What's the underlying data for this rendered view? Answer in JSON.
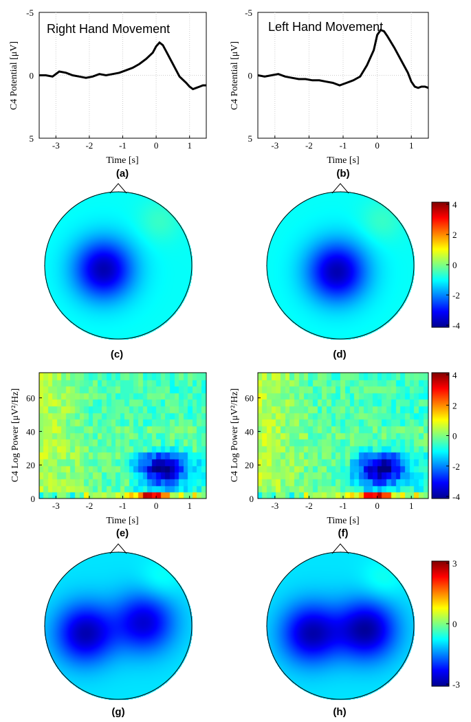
{
  "chart_data": [
    {
      "id": "a",
      "type": "line",
      "panel_label": "(a)",
      "annotation": "Right Hand Movement",
      "xlabel": "Time [s]",
      "ylabel": "C4 Potential [μV]",
      "xlim": [
        -3.5,
        1.5
      ],
      "ylim": [
        5,
        -5
      ],
      "xticks": [
        -3,
        -2,
        -1,
        0,
        1
      ],
      "yticks": [
        -5,
        0,
        5
      ],
      "grid": true,
      "series": [
        {
          "x": [
            -3.5,
            -3.3,
            -3.1,
            -2.9,
            -2.7,
            -2.5,
            -2.3,
            -2.1,
            -1.9,
            -1.7,
            -1.5,
            -1.3,
            -1.1,
            -0.9,
            -0.7,
            -0.5,
            -0.3,
            -0.1,
            0.0,
            0.1,
            0.2,
            0.3,
            0.5,
            0.7,
            0.9,
            1.0,
            1.1,
            1.2,
            1.3,
            1.4,
            1.5
          ],
          "y": [
            0,
            0,
            0.1,
            -0.3,
            -0.2,
            0,
            0.1,
            0.2,
            0.1,
            -0.1,
            0,
            -0.1,
            -0.2,
            -0.4,
            -0.6,
            -0.9,
            -1.3,
            -1.8,
            -2.3,
            -2.6,
            -2.4,
            -1.9,
            -0.9,
            0.1,
            0.6,
            0.9,
            1.1,
            1.0,
            0.9,
            0.8,
            0.8
          ]
        }
      ]
    },
    {
      "id": "b",
      "type": "line",
      "panel_label": "(b)",
      "annotation": "Left Hand Movement",
      "xlabel": "Time [s]",
      "ylabel": "C4 Potential [μV]",
      "xlim": [
        -3.5,
        1.5
      ],
      "ylim": [
        5,
        -5
      ],
      "xticks": [
        -3,
        -2,
        -1,
        0,
        1
      ],
      "yticks": [
        -5,
        0,
        5
      ],
      "grid": true,
      "series": [
        {
          "x": [
            -3.5,
            -3.3,
            -3.1,
            -2.9,
            -2.7,
            -2.5,
            -2.3,
            -2.1,
            -1.9,
            -1.7,
            -1.5,
            -1.3,
            -1.1,
            -0.9,
            -0.7,
            -0.5,
            -0.3,
            -0.1,
            0.0,
            0.1,
            0.2,
            0.3,
            0.5,
            0.7,
            0.9,
            1.0,
            1.1,
            1.2,
            1.3,
            1.4,
            1.5
          ],
          "y": [
            0,
            0.1,
            0,
            -0.1,
            0.1,
            0.2,
            0.3,
            0.3,
            0.4,
            0.4,
            0.5,
            0.6,
            0.8,
            0.6,
            0.4,
            0.1,
            -0.8,
            -2.0,
            -3.2,
            -3.6,
            -3.5,
            -3.1,
            -2.2,
            -1.2,
            -0.2,
            0.5,
            0.9,
            1.0,
            0.9,
            0.9,
            1.0
          ]
        }
      ]
    },
    {
      "id": "c",
      "type": "heatmap",
      "panel_label": "(c)",
      "description": "scalp topography",
      "minima": [
        {
          "x": -0.2,
          "y": 0.05,
          "strength": 1.0
        }
      ],
      "clim": [
        -4,
        4
      ]
    },
    {
      "id": "d",
      "type": "heatmap",
      "panel_label": "(d)",
      "description": "scalp topography",
      "minima": [
        {
          "x": -0.05,
          "y": 0.08,
          "strength": 1.0
        }
      ],
      "clim": [
        -4,
        4
      ]
    },
    {
      "id": "e",
      "type": "heatmap",
      "panel_label": "(e)",
      "xlabel": "Time [s]",
      "ylabel": "C4 Log Power [μV²/Hz]",
      "xlim": [
        -3.5,
        1.5
      ],
      "ylim": [
        0,
        75
      ],
      "xticks": [
        -3,
        -2,
        -1,
        0,
        1
      ],
      "yticks": [
        0,
        20,
        40,
        60
      ],
      "clim": [
        -4,
        4
      ]
    },
    {
      "id": "f",
      "type": "heatmap",
      "panel_label": "(f)",
      "xlabel": "Time [s]",
      "ylabel": "C4 Log Power [μV²/Hz]",
      "xlim": [
        -3.5,
        1.5
      ],
      "ylim": [
        0,
        75
      ],
      "xticks": [
        -3,
        -2,
        -1,
        0,
        1
      ],
      "yticks": [
        0,
        20,
        40,
        60
      ],
      "clim": [
        -4,
        4
      ]
    },
    {
      "id": "g",
      "type": "heatmap",
      "panel_label": "(g)",
      "description": "scalp topography",
      "minima": [
        {
          "x": -0.45,
          "y": 0.1,
          "strength": 0.9
        },
        {
          "x": 0.35,
          "y": -0.05,
          "strength": 0.8
        }
      ],
      "clim": [
        -3,
        3
      ]
    },
    {
      "id": "h",
      "type": "heatmap",
      "panel_label": "(h)",
      "description": "scalp topography",
      "minima": [
        {
          "x": -0.4,
          "y": 0.1,
          "strength": 0.9
        },
        {
          "x": 0.35,
          "y": 0.05,
          "strength": 0.95
        }
      ],
      "clim": [
        -3,
        3
      ]
    }
  ],
  "colorbars": [
    {
      "id": "cb1",
      "ticks": [
        "4",
        "2",
        "0",
        "-2",
        "-4"
      ]
    },
    {
      "id": "cb2",
      "ticks": [
        "4",
        "2",
        "0",
        "-2",
        "-4"
      ]
    },
    {
      "id": "cb3",
      "ticks": [
        "3",
        "0",
        "-3"
      ]
    }
  ]
}
